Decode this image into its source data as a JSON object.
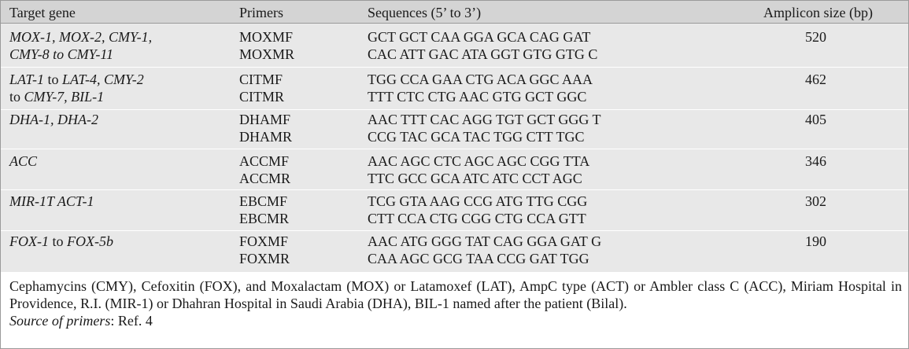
{
  "table": {
    "headers": {
      "gene": "Target gene",
      "primers": "Primers",
      "sequences": "Sequences (5’ to 3’)",
      "amplicon": "Amplicon size (bp)"
    },
    "rows": [
      {
        "gene_line1": "MOX-1, MOX-2, CMY-1,",
        "gene_line2": "CMY-8 to CMY-11",
        "primer1": "MOXMF",
        "primer2": "MOXMR",
        "seq1": "GCT GCT CAA GGA GCA CAG GAT",
        "seq2": "CAC ATT GAC ATA GGT GTG GTG C",
        "size": "520"
      },
      {
        "gene_line1": "LAT-1 to LAT-4, CMY-2",
        "gene_line2": "to CMY-7, BIL-1",
        "primer1": "CITMF",
        "primer2": "CITMR",
        "seq1": "TGG CCA GAA CTG ACA GGC AAA",
        "seq2": "TTT CTC CTG AAC GTG GCT GGC",
        "size": "462"
      },
      {
        "gene_line1": "DHA-1, DHA-2",
        "gene_line2": "",
        "primer1": "DHAMF",
        "primer2": "DHAMR",
        "seq1": "AAC TTT CAC AGG TGT GCT GGG T",
        "seq2": "CCG TAC GCA TAC TGG CTT TGC",
        "size": "405"
      },
      {
        "gene_line1": "ACC",
        "gene_line2": "",
        "primer1": "ACCMF",
        "primer2": "ACCMR",
        "seq1": "AAC AGC CTC AGC AGC CGG TTA",
        "seq2": "TTC GCC GCA ATC ATC CCT AGC",
        "size": "346"
      },
      {
        "gene_line1": "MIR-1T ACT-1",
        "gene_line2": "",
        "primer1": "EBCMF",
        "primer2": "EBCMR",
        "seq1": "TCG GTA AAG CCG ATG TTG CGG",
        "seq2": "CTT CCA CTG CGG CTG CCA GTT",
        "size": "302"
      },
      {
        "gene_line1": "FOX-1 to FOX-5b",
        "gene_line2": "",
        "primer1": "FOXMF",
        "primer2": "FOXMR",
        "seq1": "AAC ATG GGG TAT CAG GGA GAT G",
        "seq2": "CAA AGC GCG TAA CCG GAT TGG",
        "size": "190"
      }
    ]
  },
  "footnote": {
    "abbreviations": "Cephamycins (CMY), Cefoxitin (FOX), and Moxalactam (MOX) or Latamoxef (LAT), AmpC type (ACT) or Ambler class C (ACC), Miriam Hospital in Providence, R.I. (MIR-1) or Dhahran Hospital in Saudi Arabia (DHA), BIL-1 named after the patient (Bilal).",
    "source_label": "Source of primers",
    "source_value": ": Ref. 4"
  }
}
